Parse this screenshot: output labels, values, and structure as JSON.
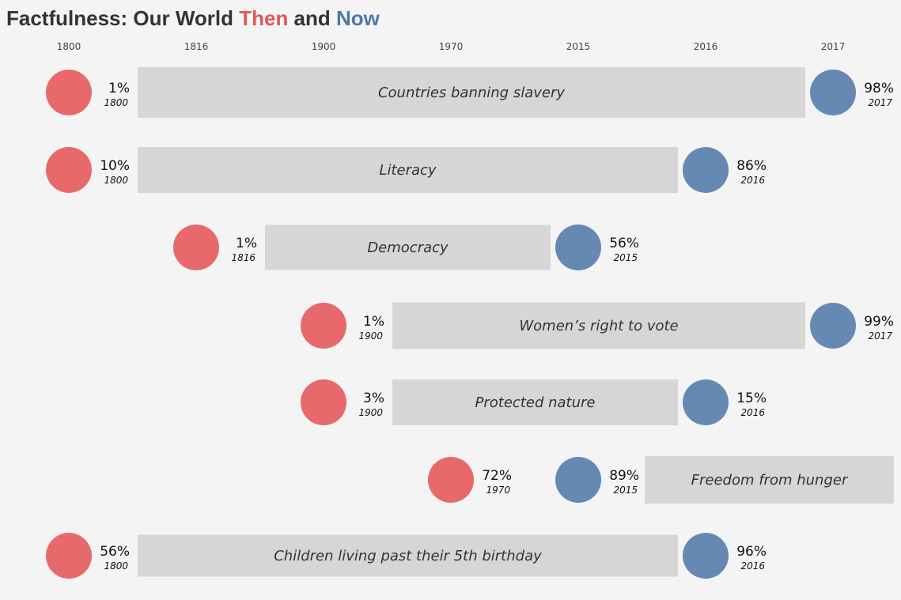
{
  "title": {
    "prefix": "Factfulness: Our World ",
    "then": "Then",
    "middle": " and ",
    "now": "Now"
  },
  "colors": {
    "then": "#e8696b",
    "now": "#6689b3",
    "bar": "#d6d6d6",
    "background": "#f4f4f4",
    "text": "#333333"
  },
  "chart_data": {
    "type": "dumbbell",
    "title": "Factfulness: Our World Then and Now",
    "x_ticks": [
      "1800",
      "1816",
      "1900",
      "1970",
      "2015",
      "2016",
      "2017"
    ],
    "series_names": [
      "Then",
      "Now"
    ],
    "rows": [
      {
        "label": "Countries banning slavery",
        "then_value": "1%",
        "then_year": "1800",
        "now_value": "98%",
        "now_year": "2017"
      },
      {
        "label": "Literacy",
        "then_value": "10%",
        "then_year": "1800",
        "now_value": "86%",
        "now_year": "2016"
      },
      {
        "label": "Democracy",
        "then_value": "1%",
        "then_year": "1816",
        "now_value": "56%",
        "now_year": "2015"
      },
      {
        "label": "Women’s right to vote",
        "then_value": "1%",
        "then_year": "1900",
        "now_value": "99%",
        "now_year": "2017"
      },
      {
        "label": "Protected nature",
        "then_value": "3%",
        "then_year": "1900",
        "now_value": "15%",
        "now_year": "2016"
      },
      {
        "label": "Freedom from hunger",
        "then_value": "72%",
        "then_year": "1970",
        "now_value": "89%",
        "now_year": "2015"
      },
      {
        "label": "Children living past their 5th birthday",
        "then_value": "56%",
        "then_year": "1800",
        "now_value": "96%",
        "now_year": "2016"
      }
    ]
  }
}
